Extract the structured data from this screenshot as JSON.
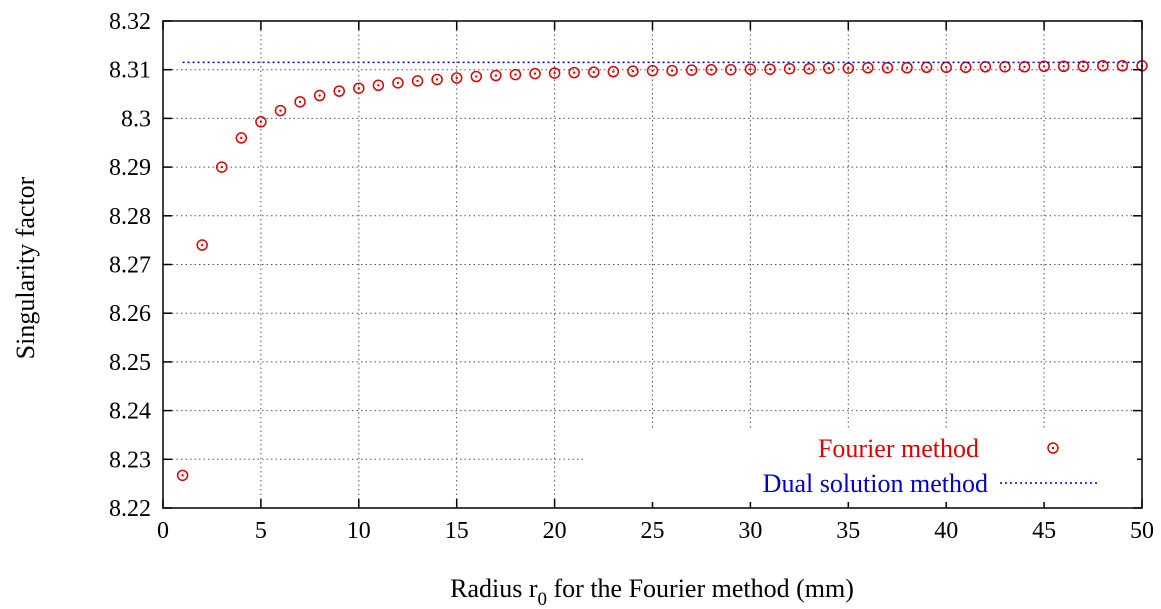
{
  "chart_data": {
    "type": "scatter",
    "title": "",
    "xlabel_prefix": "Radius r",
    "xlabel_subscript": "0",
    "xlabel_suffix": " for the Fourier method (mm)",
    "ylabel": "Singularity factor",
    "xlim": [
      0,
      50
    ],
    "ylim": [
      8.22,
      8.32
    ],
    "grid": true,
    "legend_position": "bottom-right",
    "x_ticks": [
      "0",
      "5",
      "10",
      "15",
      "20",
      "25",
      "30",
      "35",
      "40",
      "45",
      "50"
    ],
    "y_ticks": [
      "8.22",
      "8.23",
      "8.24",
      "8.25",
      "8.26",
      "8.27",
      "8.28",
      "8.29",
      "8.3",
      "8.31",
      "8.32"
    ],
    "series": [
      {
        "name": "Fourier method",
        "kind": "points",
        "color": "#e00000",
        "marker": "circle-dot",
        "x": [
          1,
          2,
          3,
          4,
          5,
          6,
          7,
          8,
          9,
          10,
          11,
          12,
          13,
          14,
          15,
          16,
          17,
          18,
          19,
          20,
          21,
          22,
          23,
          24,
          25,
          26,
          27,
          28,
          29,
          30,
          31,
          32,
          33,
          34,
          35,
          36,
          37,
          38,
          39,
          40,
          41,
          42,
          43,
          44,
          45,
          46,
          47,
          48,
          49,
          50
        ],
        "y": [
          8.2267,
          8.274,
          8.29,
          8.296,
          8.2993,
          8.3016,
          8.3034,
          8.3047,
          8.3056,
          8.3062,
          8.3068,
          8.3073,
          8.3077,
          8.308,
          8.3083,
          8.3086,
          8.3088,
          8.309,
          8.3092,
          8.3093,
          8.3094,
          8.3095,
          8.3096,
          8.3097,
          8.3098,
          8.3098,
          8.3099,
          8.31,
          8.31,
          8.3101,
          8.3101,
          8.3102,
          8.3102,
          8.3103,
          8.3103,
          8.3104,
          8.3104,
          8.3104,
          8.3105,
          8.3105,
          8.3105,
          8.3106,
          8.3106,
          8.3106,
          8.3107,
          8.3107,
          8.3107,
          8.3108,
          8.3108,
          8.3108
        ]
      },
      {
        "name": "Dual solution method",
        "kind": "line",
        "color": "#0000cc",
        "style": "dotted",
        "x": [
          1,
          50
        ],
        "y": [
          8.3115,
          8.3115
        ]
      }
    ]
  }
}
